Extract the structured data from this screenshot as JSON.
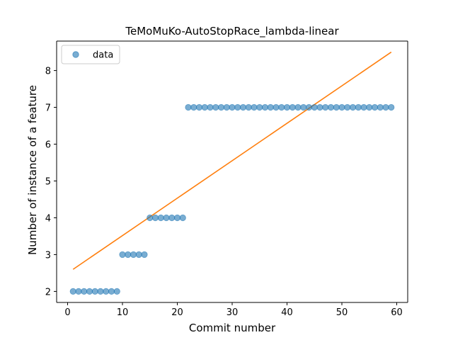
{
  "chart_data": {
    "type": "scatter",
    "title": "TeMoMuKo-AutoStopRace_lambda-linear",
    "xlabel": "Commit number",
    "ylabel": "Number of instance of a feature",
    "xlim": [
      -2,
      62
    ],
    "ylim": [
      1.7,
      8.8
    ],
    "xticks": [
      0,
      10,
      20,
      30,
      40,
      50,
      60
    ],
    "yticks": [
      2,
      3,
      4,
      5,
      6,
      7,
      8
    ],
    "grid": false,
    "legend_position": "top-left",
    "legend": [
      "data"
    ],
    "series": [
      {
        "name": "data",
        "kind": "scatter",
        "color": "#1f77b4",
        "x": [
          1,
          2,
          3,
          4,
          5,
          6,
          7,
          8,
          9,
          10,
          11,
          12,
          13,
          14,
          15,
          16,
          17,
          18,
          19,
          20,
          21,
          22,
          23,
          24,
          25,
          26,
          27,
          28,
          29,
          30,
          31,
          32,
          33,
          34,
          35,
          36,
          37,
          38,
          39,
          40,
          41,
          42,
          43,
          44,
          45,
          46,
          47,
          48,
          49,
          50,
          51,
          52,
          53,
          54,
          55,
          56,
          57,
          58,
          59
        ],
        "y": [
          2,
          2,
          2,
          2,
          2,
          2,
          2,
          2,
          2,
          3,
          3,
          3,
          3,
          3,
          4,
          4,
          4,
          4,
          4,
          4,
          4,
          7,
          7,
          7,
          7,
          7,
          7,
          7,
          7,
          7,
          7,
          7,
          7,
          7,
          7,
          7,
          7,
          7,
          7,
          7,
          7,
          7,
          7,
          7,
          7,
          7,
          7,
          7,
          7,
          7,
          7,
          7,
          7,
          7,
          7,
          7,
          7,
          7,
          7
        ]
      },
      {
        "kind": "line",
        "color": "#ff7f0e",
        "x": [
          1,
          59
        ],
        "y": [
          2.6,
          8.5
        ]
      }
    ]
  }
}
